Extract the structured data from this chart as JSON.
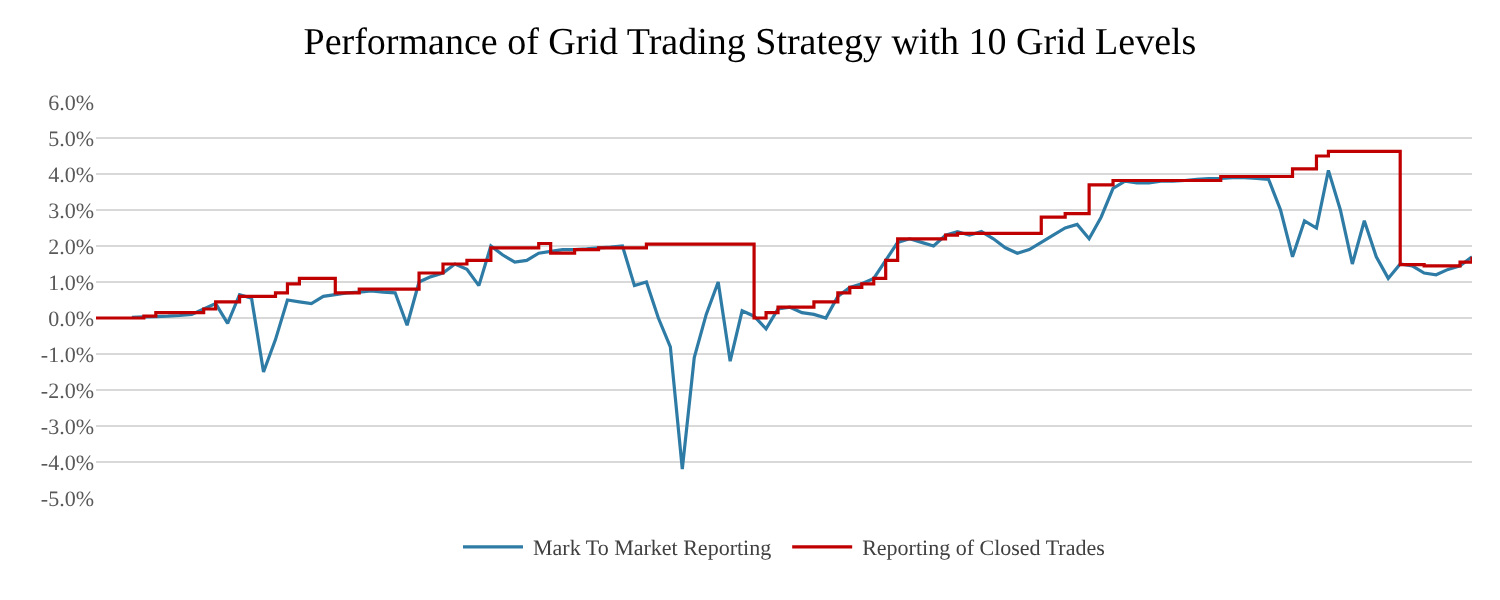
{
  "chart_data": {
    "type": "line",
    "title": "Performance of Grid Trading Strategy with 10 Grid Levels",
    "categories": [
      null,
      null,
      null,
      null,
      null,
      null,
      null,
      null,
      null,
      null,
      null,
      null,
      null,
      null,
      null,
      null,
      null,
      null,
      null,
      null,
      null,
      null,
      null,
      null,
      null,
      null,
      null,
      null,
      null,
      null,
      null,
      null,
      null,
      null,
      null,
      null,
      null,
      null,
      null,
      null,
      null,
      null,
      null,
      null,
      null,
      null,
      null,
      null,
      null,
      null,
      null,
      null,
      null,
      null,
      null,
      null,
      null,
      null,
      null,
      null,
      null,
      null,
      null,
      null,
      null,
      null,
      null,
      null,
      null,
      null,
      null,
      null,
      null,
      null,
      null,
      null,
      null,
      null,
      null,
      null,
      null,
      null,
      null,
      null,
      null,
      null,
      null,
      null,
      null,
      null,
      null,
      null,
      null,
      null,
      null,
      null,
      null,
      null,
      null,
      null,
      null,
      null,
      null,
      null,
      null,
      null,
      null,
      null,
      null,
      null,
      null,
      null,
      null,
      null,
      null,
      null
    ],
    "series": [
      {
        "name": "Mark To Market Reporting",
        "color": "#2e7ca6",
        "values": [
          null,
          null,
          null,
          0.02,
          0.03,
          0.04,
          0.05,
          0.07,
          0.1,
          0.25,
          0.4,
          -0.15,
          0.65,
          0.55,
          -1.5,
          -0.6,
          0.5,
          0.45,
          0.4,
          0.6,
          0.65,
          0.7,
          0.72,
          0.75,
          0.72,
          0.7,
          -0.2,
          1.0,
          1.15,
          1.25,
          1.5,
          1.35,
          0.9,
          2.0,
          1.75,
          1.55,
          1.6,
          1.8,
          1.85,
          1.9,
          1.9,
          1.92,
          1.95,
          1.97,
          2.0,
          0.9,
          1.0,
          0.0,
          -0.8,
          -4.2,
          -1.1,
          0.1,
          1.0,
          -1.2,
          0.2,
          0.05,
          -0.3,
          0.25,
          0.3,
          0.15,
          0.1,
          0.0,
          0.6,
          0.85,
          0.95,
          1.1,
          1.6,
          2.1,
          2.2,
          2.1,
          2.0,
          2.3,
          2.4,
          2.3,
          2.4,
          2.2,
          1.95,
          1.8,
          1.9,
          2.1,
          2.3,
          2.5,
          2.6,
          2.2,
          2.8,
          3.6,
          3.8,
          3.75,
          3.75,
          3.8,
          3.8,
          3.82,
          3.85,
          3.87,
          3.88,
          3.9,
          3.9,
          3.88,
          3.85,
          3.0,
          1.7,
          2.7,
          2.5,
          4.1,
          3.0,
          1.5,
          2.7,
          1.7,
          1.1,
          1.5,
          1.45,
          1.25,
          1.2,
          1.35,
          1.45,
          1.7
        ]
      },
      {
        "name": "Reporting of Closed Trades",
        "type": "step",
        "color": "#c00000",
        "values": [
          0,
          0,
          0,
          0,
          0.05,
          0.15,
          0.15,
          0.15,
          0.15,
          0.25,
          0.45,
          0.45,
          0.6,
          0.6,
          0.6,
          0.7,
          0.95,
          1.1,
          1.1,
          1.1,
          0.7,
          0.7,
          0.8,
          0.8,
          0.8,
          0.8,
          0.8,
          1.25,
          1.25,
          1.5,
          1.5,
          1.6,
          1.6,
          1.95,
          1.95,
          1.95,
          1.95,
          2.07,
          1.8,
          1.8,
          1.9,
          1.9,
          1.95,
          1.95,
          1.95,
          1.95,
          2.05,
          2.05,
          2.05,
          2.05,
          2.05,
          2.05,
          2.05,
          2.05,
          2.05,
          0.0,
          0.15,
          0.3,
          0.3,
          0.3,
          0.45,
          0.45,
          0.7,
          0.85,
          0.95,
          1.1,
          1.6,
          2.2,
          2.2,
          2.2,
          2.2,
          2.3,
          2.35,
          2.35,
          2.35,
          2.35,
          2.35,
          2.35,
          2.35,
          2.8,
          2.8,
          2.9,
          2.9,
          3.7,
          3.7,
          3.82,
          3.82,
          3.82,
          3.82,
          3.82,
          3.82,
          3.82,
          3.82,
          3.82,
          3.93,
          3.93,
          3.93,
          3.93,
          3.93,
          3.93,
          4.14,
          4.14,
          4.5,
          4.63,
          4.63,
          4.63,
          4.63,
          4.63,
          4.63,
          1.48,
          1.48,
          1.45,
          1.45,
          1.45,
          1.55,
          1.7
        ]
      }
    ],
    "ylim": [
      -5,
      6
    ],
    "yticks": [
      {
        "value": -5,
        "label": "-5.0%"
      },
      {
        "value": -4,
        "label": "-4.0%"
      },
      {
        "value": -3,
        "label": "-3.0%"
      },
      {
        "value": -2,
        "label": "-2.0%"
      },
      {
        "value": -1,
        "label": "-1.0%"
      },
      {
        "value": 0,
        "label": "0.0%"
      },
      {
        "value": 1,
        "label": "1.0%"
      },
      {
        "value": 2,
        "label": "2.0%"
      },
      {
        "value": 3,
        "label": "3.0%"
      },
      {
        "value": 4,
        "label": "4.0%"
      },
      {
        "value": 5,
        "label": "5.0%"
      },
      {
        "value": 6,
        "label": "6.0%"
      }
    ],
    "grid": "y",
    "legend": "bottom",
    "tick_labels": "y",
    "marker": "none",
    "line_style": "solid"
  }
}
